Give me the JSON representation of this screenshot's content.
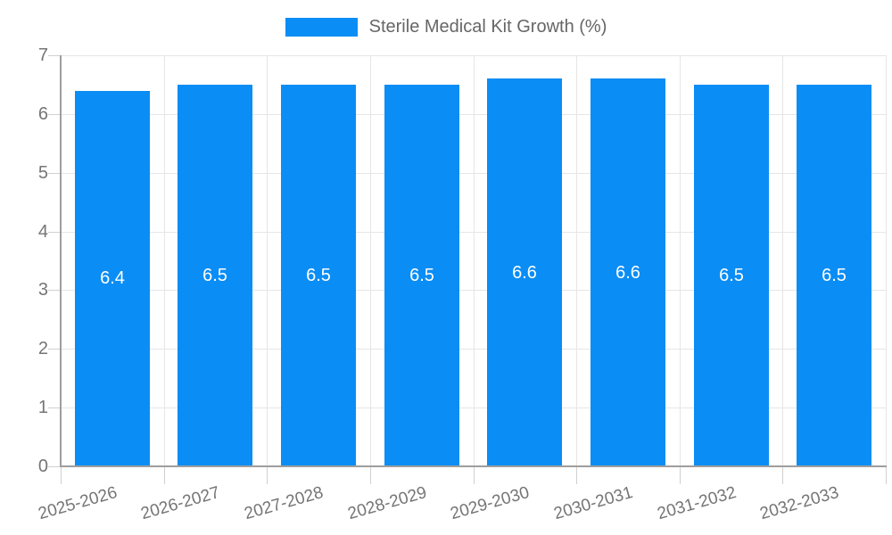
{
  "legend": {
    "label": "Sterile Medical Kit Growth (%)"
  },
  "chart_data": {
    "type": "bar",
    "title": "Sterile Medical Kit Growth (%)",
    "categories": [
      "2025-2026",
      "2026-2027",
      "2027-2028",
      "2028-2029",
      "2029-2030",
      "2030-2031",
      "2031-2032",
      "2032-2033"
    ],
    "series": [
      {
        "name": "Sterile Medical Kit Growth (%)",
        "values": [
          6.4,
          6.5,
          6.5,
          6.5,
          6.6,
          6.6,
          6.5,
          6.5
        ]
      }
    ],
    "value_labels": [
      "6.4",
      "6.5",
      "6.5",
      "6.5",
      "6.6",
      "6.6",
      "6.5",
      "6.5"
    ],
    "xlabel": "",
    "ylabel": "",
    "ylim": [
      0,
      7
    ],
    "yticks": [
      0,
      1,
      2,
      3,
      4,
      5,
      6,
      7
    ],
    "grid": true,
    "legend_position": "top",
    "x_label_rotation_deg": -16,
    "colors": {
      "bar": "#0a8df5",
      "grid": "#e6e6e6",
      "axis": "#9e9e9e",
      "tick": "#d0d0d0",
      "tick_label": "#757575",
      "legend_text": "#666666",
      "value_label": "#ffffff"
    }
  }
}
